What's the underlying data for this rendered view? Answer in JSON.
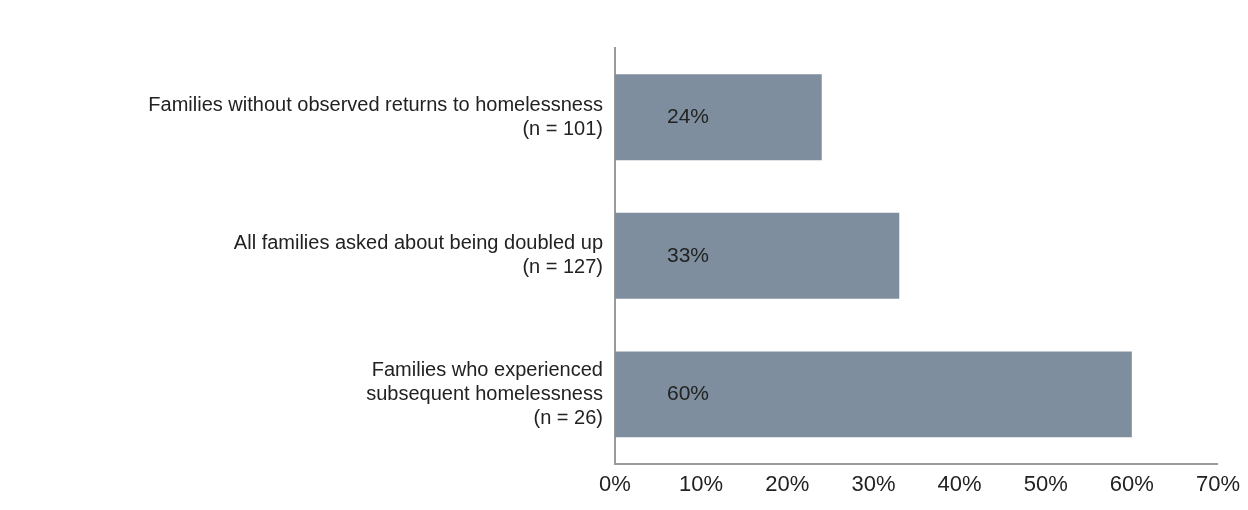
{
  "chart_data": {
    "type": "bar",
    "orientation": "horizontal",
    "categories": [
      "Families without observed returns to homelessness\n(n = 101)",
      "All families asked about being doubled up\n(n = 127)",
      "Families who experienced\nsubsequent homelessness\n(n = 26)"
    ],
    "values": [
      24,
      33,
      60
    ],
    "color": "#7f8e9e",
    "xlim": [
      0,
      70
    ],
    "xticks": [
      {
        "value": 0,
        "label": "0%"
      },
      {
        "value": 10,
        "label": "10%"
      },
      {
        "value": 20,
        "label": "20%"
      },
      {
        "value": 30,
        "label": "30%"
      },
      {
        "value": 40,
        "label": "40%"
      },
      {
        "value": 50,
        "label": "50%"
      },
      {
        "value": 60,
        "label": "60%"
      },
      {
        "value": 70,
        "label": "70%"
      }
    ],
    "value_labels": [
      "24%",
      "33%",
      "60%"
    ],
    "grid": false,
    "legend": false
  }
}
